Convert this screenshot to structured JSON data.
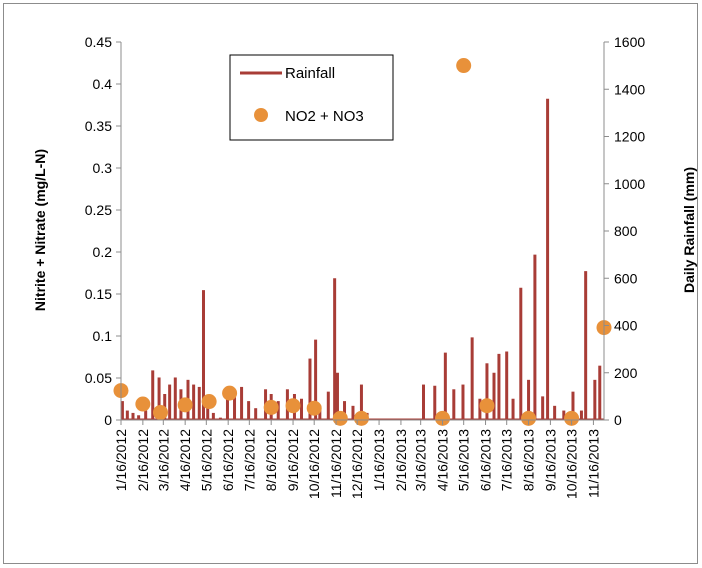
{
  "chart_data": {
    "type": "line",
    "title": "",
    "ylabel_left": "Nitrite + Nitrate (mg/L-N)",
    "ylabel_right": "Daily Rainfall (mm)",
    "xlabel": "",
    "ylim_left": [
      0,
      0.45
    ],
    "yticks_left": [
      "0",
      "0.05",
      "0.1",
      "0.15",
      "0.2",
      "0.25",
      "0.3",
      "0.35",
      "0.4",
      "0.45"
    ],
    "ylim_right": [
      0,
      1600
    ],
    "yticks_right": [
      "0",
      "200",
      "400",
      "600",
      "800",
      "1000",
      "1200",
      "1400",
      "1600"
    ],
    "x_range": [
      "2012-01-16",
      "2013-12-01"
    ],
    "x_tick_labels": [
      "1/16/2012",
      "2/16/2012",
      "3/16/2012",
      "4/16/2012",
      "5/16/2012",
      "6/16/2012",
      "7/16/2012",
      "8/16/2012",
      "9/16/2012",
      "10/16/2012",
      "11/16/2012",
      "12/16/2012",
      "1/16/2013",
      "2/16/2013",
      "3/16/2013",
      "4/16/2013",
      "5/16/2013",
      "6/16/2013",
      "7/16/2013",
      "8/16/2013",
      "9/16/2013",
      "10/16/2013",
      "11/16/2013"
    ],
    "grid": false,
    "legend_position": "top-left",
    "series": [
      {
        "name": "Rainfall",
        "type": "line",
        "axis": "right",
        "color": "#a83c36",
        "x": [
          "2012-01-18",
          "2012-01-25",
          "2012-02-02",
          "2012-02-10",
          "2012-02-20",
          "2012-03-01",
          "2012-03-10",
          "2012-03-18",
          "2012-03-25",
          "2012-04-02",
          "2012-04-10",
          "2012-04-20",
          "2012-04-28",
          "2012-05-06",
          "2012-05-12",
          "2012-05-18",
          "2012-05-26",
          "2012-06-05",
          "2012-06-15",
          "2012-06-25",
          "2012-07-05",
          "2012-07-15",
          "2012-07-25",
          "2012-08-08",
          "2012-08-16",
          "2012-08-26",
          "2012-09-08",
          "2012-09-18",
          "2012-09-28",
          "2012-10-10",
          "2012-10-18",
          "2012-10-24",
          "2012-11-05",
          "2012-11-14",
          "2012-11-18",
          "2012-11-28",
          "2012-12-10",
          "2012-12-22",
          "2012-12-30",
          "2013-03-20",
          "2013-04-05",
          "2013-04-20",
          "2013-05-02",
          "2013-05-15",
          "2013-05-28",
          "2013-06-08",
          "2013-06-18",
          "2013-06-28",
          "2013-07-05",
          "2013-07-16",
          "2013-07-25",
          "2013-08-05",
          "2013-08-16",
          "2013-08-25",
          "2013-09-05",
          "2013-09-12",
          "2013-09-22",
          "2013-10-05",
          "2013-10-18",
          "2013-10-30",
          "2013-11-05",
          "2013-11-18",
          "2013-11-25"
        ],
        "values": [
          80,
          40,
          30,
          20,
          40,
          210,
          180,
          110,
          150,
          180,
          130,
          170,
          150,
          140,
          550,
          60,
          30,
          10,
          90,
          110,
          140,
          80,
          50,
          130,
          110,
          80,
          130,
          110,
          90,
          260,
          340,
          60,
          120,
          600,
          200,
          80,
          60,
          150,
          30,
          150,
          145,
          285,
          130,
          150,
          350,
          90,
          240,
          200,
          280,
          290,
          90,
          560,
          170,
          700,
          100,
          1360,
          60,
          40,
          120,
          40,
          630,
          170,
          230
        ]
      },
      {
        "name": "NO2 + NO3",
        "type": "scatter",
        "axis": "left",
        "color": "#e8913a",
        "x": [
          "2012-01-16",
          "2012-02-16",
          "2012-03-12",
          "2012-04-16",
          "2012-05-20",
          "2012-06-18",
          "2012-08-16",
          "2012-09-16",
          "2012-10-16",
          "2012-11-22",
          "2012-12-22",
          "2013-04-16",
          "2013-05-16",
          "2013-06-18",
          "2013-08-16",
          "2013-10-16",
          "2013-12-01"
        ],
        "values": [
          0.035,
          0.019,
          0.009,
          0.018,
          0.022,
          0.032,
          0.015,
          0.017,
          0.014,
          0.002,
          0.002,
          0.002,
          0.422,
          0.017,
          0.002,
          0.002,
          0.11
        ]
      }
    ]
  },
  "legend": [
    {
      "label": "Rainfall",
      "marker": "line",
      "color": "#a83c36"
    },
    {
      "label": "NO2 + NO3",
      "marker": "circle",
      "color": "#e8913a"
    }
  ]
}
